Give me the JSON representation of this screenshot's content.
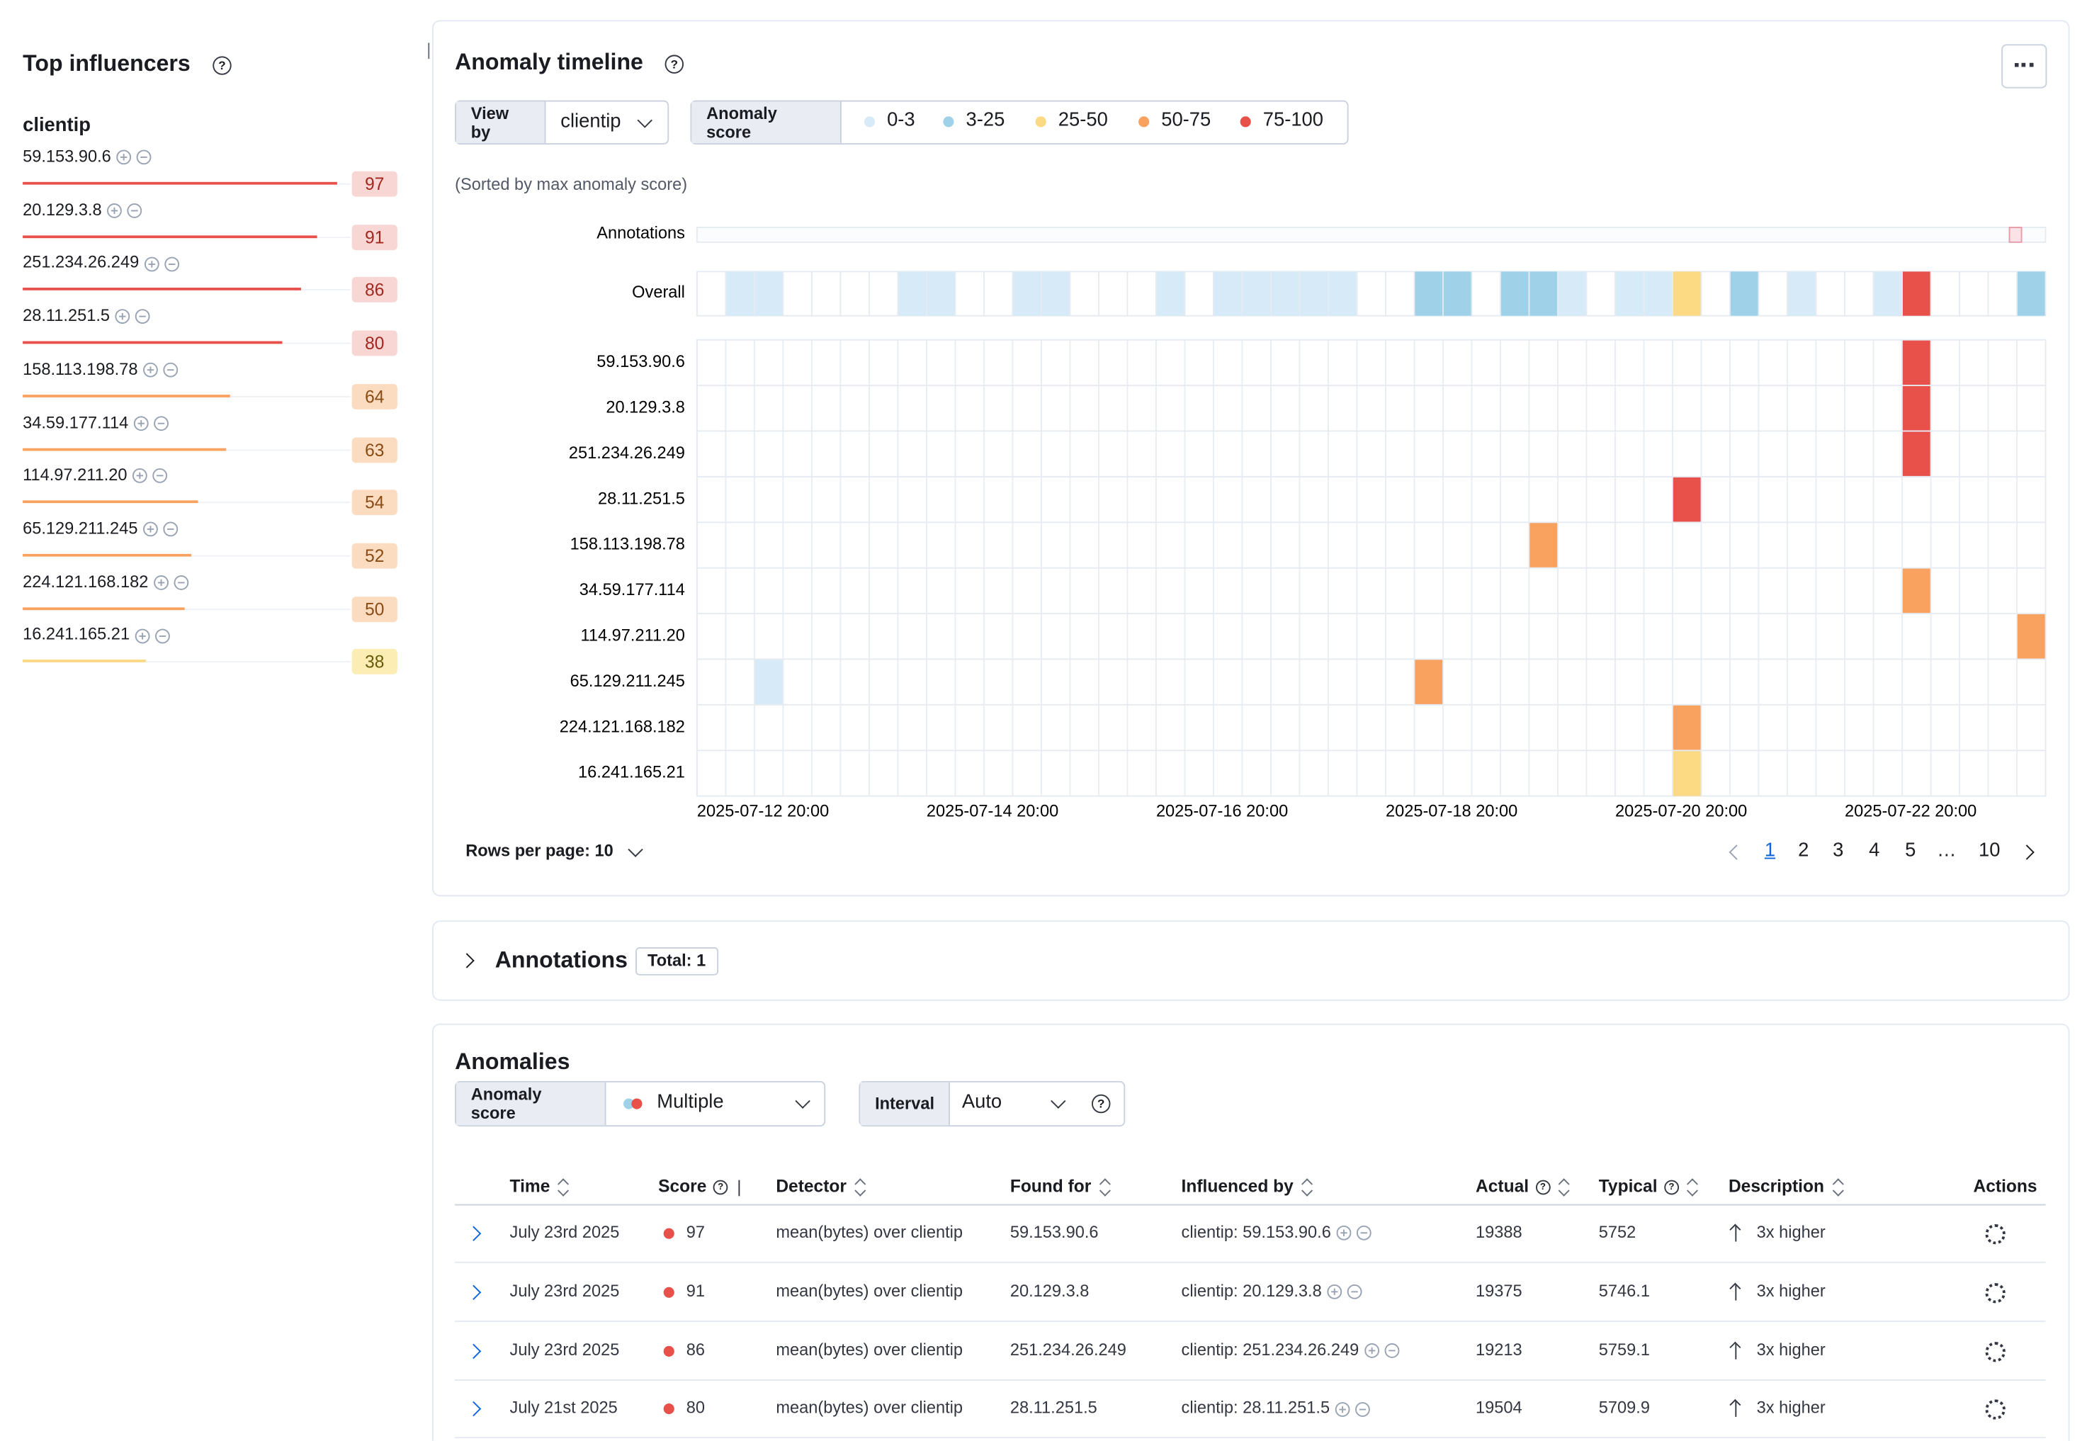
{
  "sidebar": {
    "title": "Top influencers",
    "field": "clientip",
    "items": [
      {
        "name": "59.153.90.6",
        "score": 97,
        "level": 4
      },
      {
        "name": "20.129.3.8",
        "score": 91,
        "level": 4
      },
      {
        "name": "251.234.26.249",
        "score": 86,
        "level": 4
      },
      {
        "name": "28.11.251.5",
        "score": 80,
        "level": 4
      },
      {
        "name": "158.113.198.78",
        "score": 64,
        "level": 3
      },
      {
        "name": "34.59.177.114",
        "score": 63,
        "level": 3
      },
      {
        "name": "114.97.211.20",
        "score": 54,
        "level": 3
      },
      {
        "name": "65.129.211.245",
        "score": 52,
        "level": 3
      },
      {
        "name": "224.121.168.182",
        "score": 50,
        "level": 3
      },
      {
        "name": "16.241.165.21",
        "score": 38,
        "level": 2
      }
    ]
  },
  "timeline": {
    "title": "Anomaly timeline",
    "view_by_label": "View by",
    "view_by": "clientip",
    "score_label": "Anomaly score",
    "legend": [
      {
        "label": "0-3",
        "color": "#d6ebf7"
      },
      {
        "label": "3-25",
        "color": "#9fd2e8"
      },
      {
        "label": "25-50",
        "color": "#fcd983"
      },
      {
        "label": "50-75",
        "color": "#f9a15f"
      },
      {
        "label": "75-100",
        "color": "#e8504a"
      }
    ],
    "sort_note": "(Sorted by max anomaly score)",
    "annotations_label": "Annotations",
    "overall_label": "Overall",
    "overall_cells": [
      [
        1,
        0
      ],
      [
        2,
        0
      ],
      [
        7,
        0
      ],
      [
        8,
        0
      ],
      [
        11,
        0
      ],
      [
        12,
        0
      ],
      [
        16,
        0
      ],
      [
        18,
        0
      ],
      [
        19,
        0
      ],
      [
        20,
        0
      ],
      [
        21,
        0
      ],
      [
        22,
        0
      ],
      [
        25,
        1
      ],
      [
        26,
        1
      ],
      [
        28,
        1
      ],
      [
        29,
        1
      ],
      [
        30,
        0
      ],
      [
        32,
        0
      ],
      [
        33,
        0
      ],
      [
        34,
        2
      ],
      [
        36,
        1
      ],
      [
        38,
        0
      ],
      [
        41,
        0
      ],
      [
        42,
        4
      ],
      [
        46,
        1
      ]
    ],
    "rows": [
      {
        "label": "59.153.90.6",
        "cells": [
          [
            42,
            4
          ]
        ]
      },
      {
        "label": "20.129.3.8",
        "cells": [
          [
            42,
            4
          ]
        ]
      },
      {
        "label": "251.234.26.249",
        "cells": [
          [
            42,
            4
          ]
        ]
      },
      {
        "label": "28.11.251.5",
        "cells": [
          [
            34,
            4
          ]
        ]
      },
      {
        "label": "158.113.198.78",
        "cells": [
          [
            29,
            3
          ]
        ]
      },
      {
        "label": "34.59.177.114",
        "cells": [
          [
            42,
            3
          ]
        ]
      },
      {
        "label": "114.97.211.20",
        "cells": [
          [
            46,
            3
          ]
        ]
      },
      {
        "label": "65.129.211.245",
        "cells": [
          [
            2,
            0
          ],
          [
            25,
            3
          ]
        ]
      },
      {
        "label": "224.121.168.182",
        "cells": [
          [
            34,
            3
          ]
        ]
      },
      {
        "label": "16.241.165.21",
        "cells": [
          [
            34,
            2
          ]
        ]
      }
    ],
    "x_labels": [
      "2025-07-12 20:00",
      "2025-07-14 20:00",
      "2025-07-16 20:00",
      "2025-07-18 20:00",
      "2025-07-20 20:00",
      "2025-07-22 20:00"
    ],
    "rows_per_page": "Rows per page: 10",
    "pages": [
      "1",
      "2",
      "3",
      "4",
      "5",
      "…",
      "10"
    ]
  },
  "annotations": {
    "title": "Annotations",
    "total": "Total: 1"
  },
  "anomalies": {
    "title": "Anomalies",
    "score_label": "Anomaly score",
    "score_value": "Multiple",
    "interval_label": "Interval",
    "interval": "Auto",
    "columns": [
      "Time",
      "Score",
      "Detector",
      "Found for",
      "Influenced by",
      "Actual",
      "Typical",
      "Description",
      "Actions"
    ],
    "rows": [
      {
        "time": "July 23rd 2025",
        "score": 97,
        "level": 4,
        "detector": "mean(bytes) over clientip",
        "found_for": "59.153.90.6",
        "influenced_by": "clientip: 59.153.90.6",
        "actual": 19388,
        "typical": 5752,
        "description": "3x higher"
      },
      {
        "time": "July 23rd 2025",
        "score": 91,
        "level": 4,
        "detector": "mean(bytes) over clientip",
        "found_for": "20.129.3.8",
        "influenced_by": "clientip: 20.129.3.8",
        "actual": 19375,
        "typical": 5746.1,
        "description": "3x higher"
      },
      {
        "time": "July 23rd 2025",
        "score": 86,
        "level": 4,
        "detector": "mean(bytes) over clientip",
        "found_for": "251.234.26.249",
        "influenced_by": "clientip: 251.234.26.249",
        "actual": 19213,
        "typical": 5759.1,
        "description": "3x higher"
      },
      {
        "time": "July 21st 2025",
        "score": 80,
        "level": 4,
        "detector": "mean(bytes) over clientip",
        "found_for": "28.11.251.5",
        "influenced_by": "clientip: 28.11.251.5",
        "actual": 19504,
        "typical": 5709.9,
        "description": "3x higher"
      }
    ]
  }
}
